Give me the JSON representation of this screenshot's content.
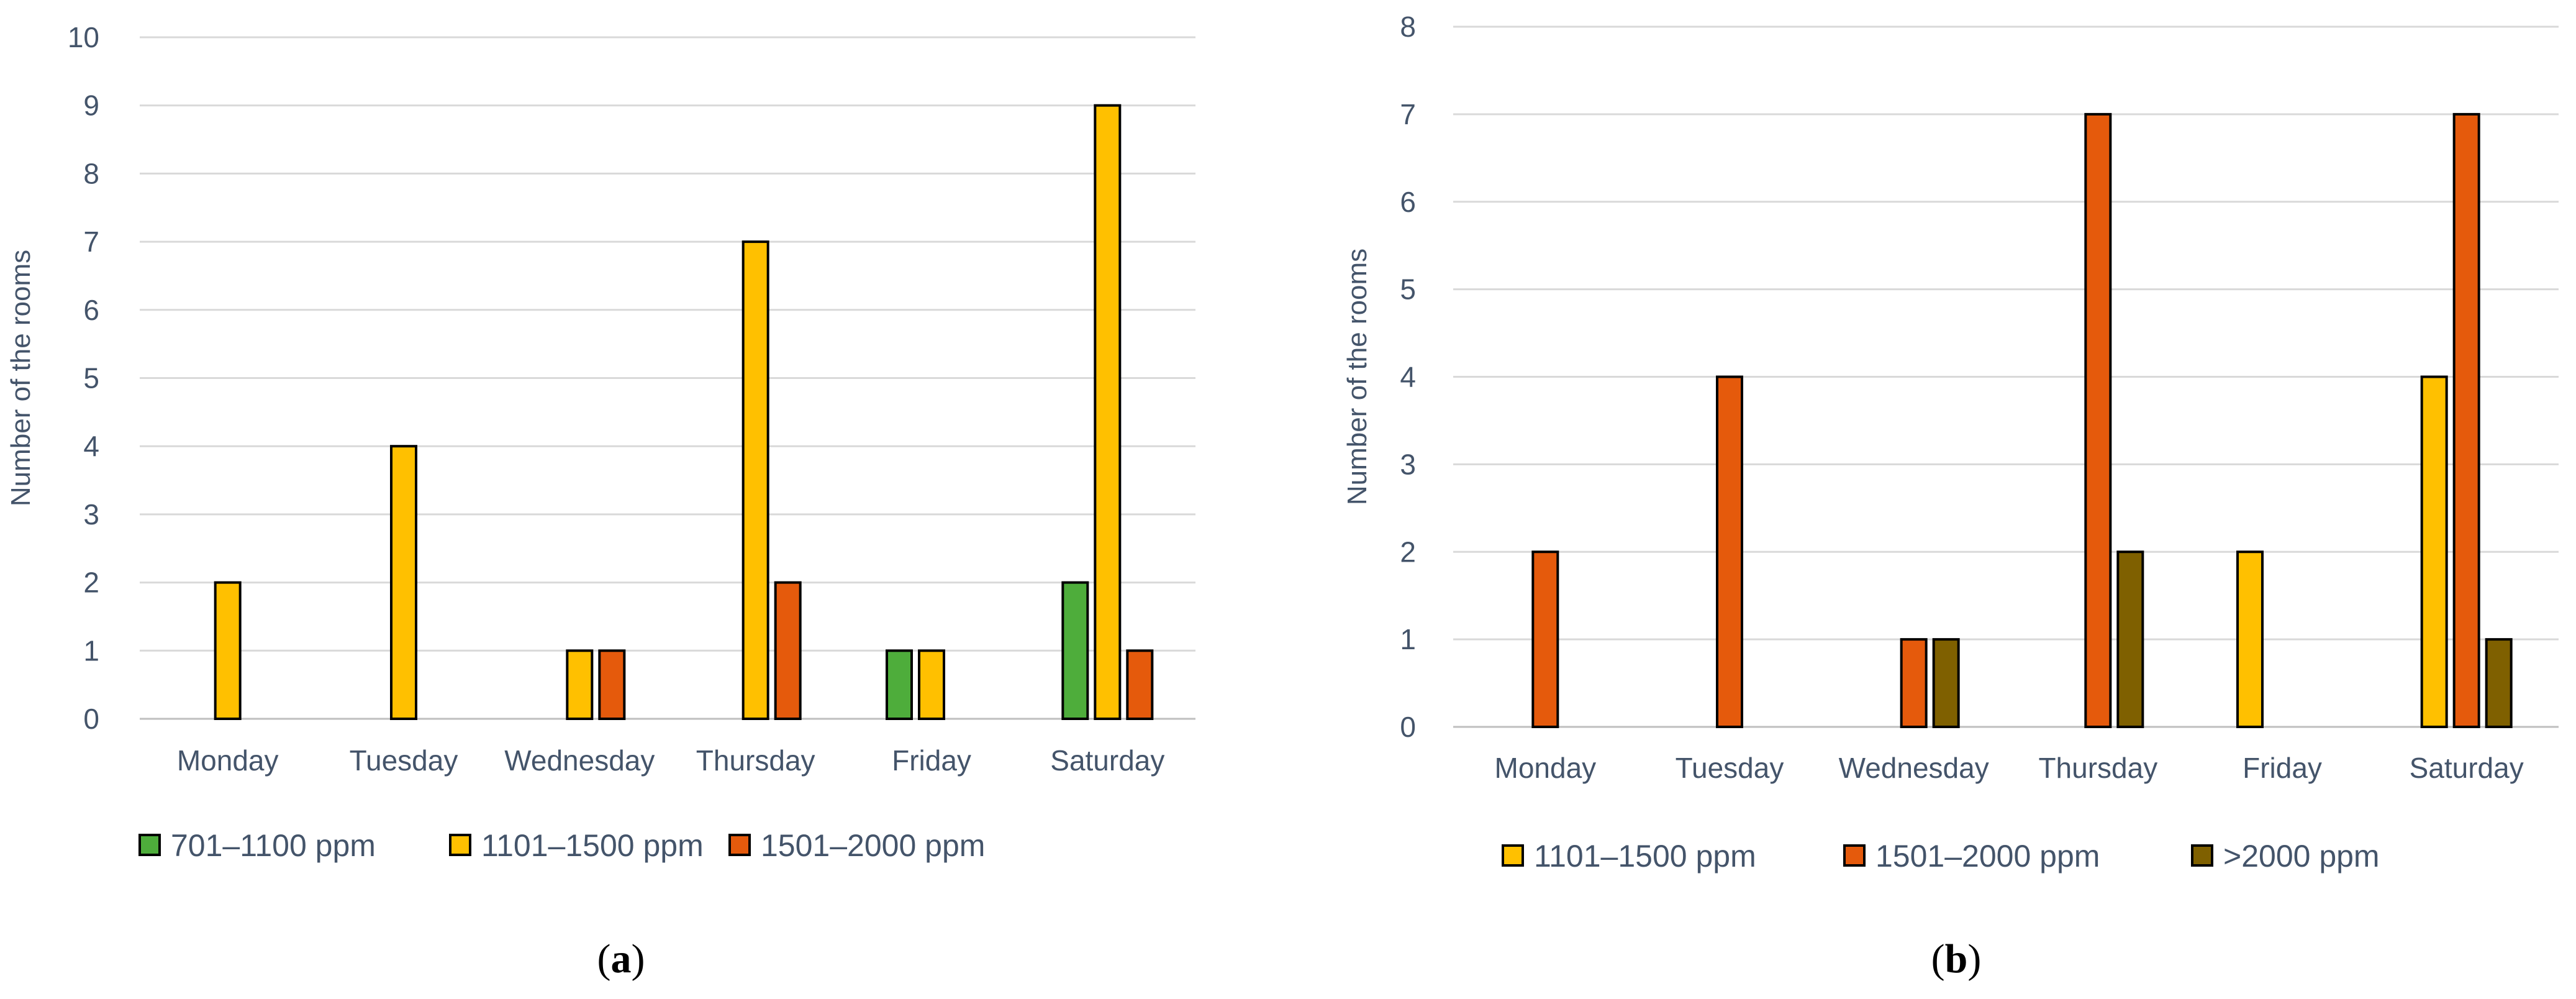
{
  "chart_data": [
    {
      "type": "bar",
      "panel_label_pre": "(",
      "panel_label_letter": "a",
      "panel_label_post": ")",
      "ylabel": "Number of the rooms",
      "xlabel": "",
      "ylim": [
        0,
        10
      ],
      "yticks": [
        0,
        1,
        2,
        3,
        4,
        5,
        6,
        7,
        8,
        9,
        10
      ],
      "categories": [
        "Monday",
        "Tuesday",
        "Wednesday",
        "Thursday",
        "Friday",
        "Saturday"
      ],
      "series": [
        {
          "name": "701–1100 ppm",
          "color": "#4EAD3B",
          "values": [
            0,
            0,
            0,
            0,
            1,
            2
          ]
        },
        {
          "name": "1101–1500 ppm",
          "color": "#FFC000",
          "values": [
            2,
            4,
            1,
            7,
            1,
            9
          ]
        },
        {
          "name": "1501–2000 ppm",
          "color": "#E55A0C",
          "values": [
            0,
            0,
            1,
            2,
            0,
            1
          ]
        }
      ],
      "legend_position": "bottom"
    },
    {
      "type": "bar",
      "panel_label_pre": "(",
      "panel_label_letter": "b",
      "panel_label_post": ")",
      "ylabel": "Number of the rooms",
      "xlabel": "",
      "ylim": [
        0,
        8
      ],
      "yticks": [
        0,
        1,
        2,
        3,
        4,
        5,
        6,
        7,
        8
      ],
      "categories": [
        "Monday",
        "Tuesday",
        "Wednesday",
        "Thursday",
        "Friday",
        "Saturday"
      ],
      "series": [
        {
          "name": "1101–1500 ppm",
          "color": "#FFC000",
          "values": [
            0,
            0,
            0,
            0,
            2,
            4
          ]
        },
        {
          "name": "1501–2000 ppm",
          "color": "#E55A0C",
          "values": [
            2,
            4,
            1,
            7,
            0,
            7
          ]
        },
        {
          "name": ">2000 ppm",
          "color": "#7F6000",
          "values": [
            0,
            0,
            1,
            2,
            0,
            1
          ]
        }
      ],
      "legend_position": "bottom"
    }
  ]
}
